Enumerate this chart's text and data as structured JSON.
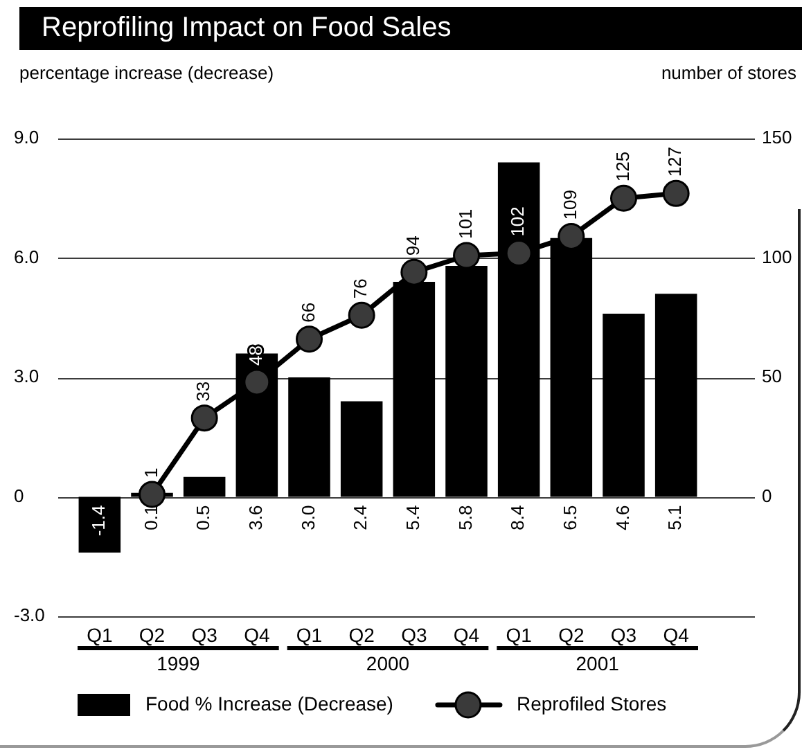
{
  "chart_data": {
    "type": "bar",
    "title": "Reprofiling Impact on Food Sales",
    "ylabel": "percentage increase (decrease)",
    "y2label": "number of stores",
    "categories": [
      "Q1",
      "Q2",
      "Q3",
      "Q4",
      "Q1",
      "Q2",
      "Q3",
      "Q4",
      "Q1",
      "Q2",
      "Q3",
      "Q4"
    ],
    "series": [
      {
        "name": "Food % Increase (Decrease)",
        "color": "#000000",
        "values": [
          -1.4,
          0.1,
          0.5,
          3.6,
          3.0,
          2.4,
          5.4,
          5.8,
          8.4,
          6.5,
          4.6,
          5.1
        ],
        "value_labels": [
          "-1.4",
          "0.1",
          "0.5",
          "3.6",
          "3.0",
          "2.4",
          "5.4",
          "5.8",
          "8.4",
          "6.5",
          "4.6",
          "5.1"
        ]
      },
      {
        "name": "Reprofiled Stores",
        "type": "line",
        "axis": "y2",
        "color": "#000000",
        "values": [
          null,
          1,
          33,
          48,
          66,
          76,
          94,
          101,
          102,
          109,
          125,
          127
        ],
        "value_labels": [
          null,
          "1",
          "33",
          "48",
          "66",
          "76",
          "94",
          "101",
          "102",
          "109",
          "125",
          "127"
        ]
      }
    ],
    "ylim": [
      -3,
      9
    ],
    "yticks": [
      {
        "value": -3,
        "label": "-3.0"
      },
      {
        "value": 0,
        "label": "0"
      },
      {
        "value": 3,
        "label": "3.0"
      },
      {
        "value": 6,
        "label": "6.0"
      },
      {
        "value": 9,
        "label": "9.0"
      }
    ],
    "y2lim": [
      -50,
      150
    ],
    "y2ticks": [
      0,
      50,
      100,
      150
    ],
    "grid": "y",
    "legend": "bottom",
    "marker": "circle",
    "annotations": [
      "1999",
      "2000",
      "2001"
    ]
  }
}
